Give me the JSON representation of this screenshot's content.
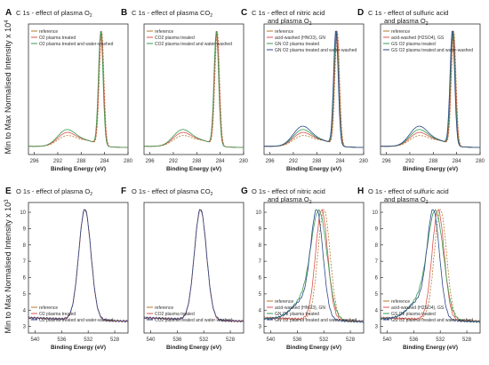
{
  "figure": {
    "y_label_top": "Min to Max Normalised Intensity x 10",
    "y_label_top_exp": "4",
    "y_label_bottom": "Min to Max Normalised Intensity x 10",
    "y_label_bottom_exp": "3"
  },
  "chart_data": [
    {
      "panel": "A",
      "type": "line",
      "title_lines": [
        "C 1s - effect of plasma O",
        ""
      ],
      "title_sub": "2",
      "xlabel": "Binding Energy (eV)",
      "x_ticks": [
        "296",
        "292",
        "288",
        "284",
        "280"
      ],
      "xlim": [
        297,
        280
      ],
      "peak": 284.5,
      "kind": "C",
      "series": [
        {
          "name": "reference",
          "color": "#b07a2a"
        },
        {
          "name": "O2 plasma treated",
          "color": "#e05050"
        },
        {
          "name": "O2 plasma treated and water-washed",
          "color": "#3a9a50"
        }
      ]
    },
    {
      "panel": "B",
      "type": "line",
      "title_lines": [
        "C 1s - effect of plasma CO",
        ""
      ],
      "title_sub": "2",
      "xlabel": "Binding Energy (eV)",
      "x_ticks": [
        "296",
        "292",
        "288",
        "284",
        "280"
      ],
      "xlim": [
        297,
        280
      ],
      "peak": 284.5,
      "kind": "C",
      "series": [
        {
          "name": "reference",
          "color": "#b07a2a"
        },
        {
          "name": "CO2 plasma treated",
          "color": "#e05050"
        },
        {
          "name": "CO2 plasma treated and water-washed",
          "color": "#3a9a50"
        }
      ]
    },
    {
      "panel": "C",
      "type": "line",
      "title_lines": [
        "C 1s - effect of nitric acid",
        "and plasma O"
      ],
      "title_sub": "2",
      "xlabel": "Binding Energy (eV)",
      "x_ticks": [
        "296",
        "292",
        "288",
        "284",
        "280"
      ],
      "xlim": [
        297,
        280
      ],
      "peak": 284.5,
      "kind": "C",
      "series": [
        {
          "name": "reference",
          "color": "#b07a2a"
        },
        {
          "name": "acid-washed (HNO3), GN",
          "color": "#e05050"
        },
        {
          "name": "GN O2 plasma treated",
          "color": "#3a9a50"
        },
        {
          "name": "GN O2 plasma treated and water-washed",
          "color": "#2a4a8a"
        }
      ]
    },
    {
      "panel": "D",
      "type": "line",
      "title_lines": [
        "C 1s - effect of sulfuric acid",
        "and plasma O"
      ],
      "title_sub": "2",
      "xlabel": "Binding Energy (eV)",
      "x_ticks": [
        "296",
        "292",
        "288",
        "284",
        "280"
      ],
      "xlim": [
        297,
        280
      ],
      "peak": 284.5,
      "kind": "C",
      "series": [
        {
          "name": "reference",
          "color": "#b07a2a"
        },
        {
          "name": "acid-washed (H2SO4), GS",
          "color": "#e05050"
        },
        {
          "name": "GS O2 plasma treated",
          "color": "#3a9a50"
        },
        {
          "name": "GS O2 plasma treated and water-washed",
          "color": "#2a4a8a"
        }
      ]
    },
    {
      "panel": "E",
      "type": "line",
      "title_lines": [
        "O 1s - effect of plasma O",
        ""
      ],
      "title_sub": "2",
      "xlabel": "Binding Energy (eV)",
      "x_ticks": [
        "540",
        "536",
        "532",
        "528"
      ],
      "xlim": [
        541,
        526
      ],
      "peak": 532.5,
      "kind": "O",
      "y_ticks": [
        "10",
        "9",
        "8",
        "7",
        "6",
        "5",
        "4",
        "3"
      ],
      "ylim": [
        2.6,
        10.6
      ],
      "series": [
        {
          "name": "reference",
          "color": "#b07a2a"
        },
        {
          "name": "O2 plasma treated",
          "color": "#e05050"
        },
        {
          "name": "O2 plasma treated and water-washed",
          "color": "#2a4a8a"
        }
      ]
    },
    {
      "panel": "F",
      "type": "line",
      "title_lines": [
        "O 1s - effect of plasma CO",
        ""
      ],
      "title_sub": "2",
      "xlabel": "Binding Energy (eV)",
      "x_ticks": [
        "540",
        "536",
        "532",
        "528"
      ],
      "xlim": [
        541,
        526
      ],
      "peak": 532.5,
      "kind": "O",
      "series": [
        {
          "name": "reference",
          "color": "#b07a2a"
        },
        {
          "name": "CO2 plasma treated",
          "color": "#e05050"
        },
        {
          "name": "CO2 plasma treated and water-washed",
          "color": "#2a4a8a"
        }
      ]
    },
    {
      "panel": "G",
      "type": "line",
      "title_lines": [
        "O 1s - effect of nitric acid",
        "and plasma O"
      ],
      "title_sub": "2",
      "xlabel": "Binding Energy (eV)",
      "x_ticks": [
        "540",
        "536",
        "532",
        "528"
      ],
      "xlim": [
        541,
        526
      ],
      "peak": 532.5,
      "kind": "O",
      "y_ticks": [
        "10",
        "9",
        "8",
        "7",
        "6",
        "5",
        "4",
        "3"
      ],
      "ylim": [
        2.6,
        10.6
      ],
      "series": [
        {
          "name": "reference",
          "color": "#b07a2a"
        },
        {
          "name": "acid-washed (HNO3), GN",
          "color": "#e05050"
        },
        {
          "name": "GN O2 plasma treated",
          "color": "#3a9a50"
        },
        {
          "name": "GN O2 plasma treated and water-washed",
          "color": "#2a4a8a"
        }
      ]
    },
    {
      "panel": "H",
      "type": "line",
      "title_lines": [
        "O 1s - effect of sulfuric acid",
        "and plasma O"
      ],
      "title_sub": "2",
      "xlabel": "Binding Energy (eV)",
      "x_ticks": [
        "540",
        "536",
        "532",
        "528"
      ],
      "xlim": [
        541,
        526
      ],
      "peak": 532.5,
      "kind": "O",
      "y_ticks": [
        "10",
        "9",
        "8",
        "7",
        "6",
        "5",
        "4",
        "3"
      ],
      "ylim": [
        2.6,
        10.6
      ],
      "series": [
        {
          "name": "reference",
          "color": "#b07a2a"
        },
        {
          "name": "acid-washed (H2SO4), GS",
          "color": "#e05050"
        },
        {
          "name": "GS O2 plasma treated",
          "color": "#3a9a50"
        },
        {
          "name": "GS O2 plasma treated and water-washed",
          "color": "#2a4a8a"
        }
      ]
    }
  ]
}
